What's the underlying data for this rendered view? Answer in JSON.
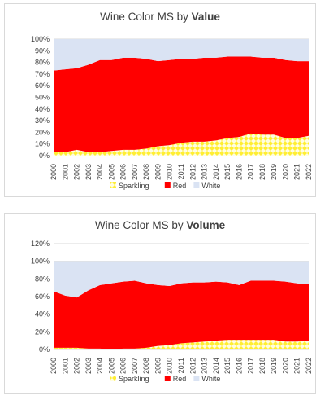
{
  "chart_data": [
    {
      "type": "area",
      "stacked": true,
      "title": "Wine Color MS by Value",
      "title_plain": "Wine Color MS by ",
      "title_bold": "Value",
      "xlabel": "",
      "ylabel": "",
      "x": [
        "2000",
        "2001",
        "2002",
        "2003",
        "2004",
        "2005",
        "2006",
        "2007",
        "2008",
        "2009",
        "2010",
        "2011",
        "2012",
        "2013",
        "2014",
        "2015",
        "2016",
        "2017",
        "2018",
        "2019",
        "2020",
        "2021",
        "2022"
      ],
      "ylim": [
        0,
        100
      ],
      "y_ticks": [
        "0%",
        "10%",
        "20%",
        "30%",
        "40%",
        "50%",
        "60%",
        "70%",
        "80%",
        "90%",
        "100%"
      ],
      "legend_position": "bottom",
      "grid": true,
      "series": [
        {
          "name": "Sparkling",
          "color": "#ffff66",
          "pattern": "diamond",
          "values": [
            3,
            3,
            5,
            3,
            3,
            4,
            5,
            5,
            6,
            8,
            9,
            11,
            12,
            12,
            13,
            15,
            16,
            19,
            18,
            18,
            15,
            15,
            17
          ]
        },
        {
          "name": "Red",
          "color": "#ff0000",
          "values": [
            70,
            71,
            70,
            75,
            79,
            78,
            79,
            79,
            77,
            73,
            73,
            72,
            71,
            72,
            71,
            70,
            69,
            66,
            66,
            66,
            67,
            66,
            64
          ]
        },
        {
          "name": "White",
          "color": "#dae3f3",
          "values": [
            27,
            26,
            25,
            22,
            18,
            18,
            16,
            16,
            17,
            19,
            18,
            17,
            17,
            16,
            16,
            15,
            15,
            15,
            16,
            16,
            18,
            19,
            19
          ]
        }
      ]
    },
    {
      "type": "area",
      "stacked": true,
      "title": "Wine Color MS by Volume",
      "title_plain": "Wine Color MS by ",
      "title_bold": "Volume",
      "xlabel": "",
      "ylabel": "",
      "x": [
        "2000",
        "2001",
        "2002",
        "2003",
        "2004",
        "2005",
        "2006",
        "2007",
        "2008",
        "2009",
        "2010",
        "2011",
        "2012",
        "2013",
        "2014",
        "2015",
        "2016",
        "2017",
        "2018",
        "2019",
        "2020",
        "2021",
        "2022"
      ],
      "ylim": [
        0,
        120
      ],
      "y_ticks": [
        "0%",
        "20%",
        "40%",
        "60%",
        "80%",
        "100%",
        "120%"
      ],
      "legend_position": "bottom",
      "grid": true,
      "series": [
        {
          "name": "Sparkling",
          "color": "#ffff66",
          "pattern": "diamond",
          "values": [
            2,
            2,
            2,
            1,
            1,
            0,
            1,
            1,
            2,
            4,
            5,
            7,
            8,
            9,
            10,
            11,
            11,
            11,
            11,
            11,
            9,
            9,
            10
          ]
        },
        {
          "name": "Red",
          "color": "#ff0000",
          "values": [
            64,
            59,
            57,
            66,
            72,
            75,
            76,
            77,
            73,
            69,
            67,
            68,
            68,
            67,
            67,
            65,
            62,
            67,
            67,
            67,
            68,
            66,
            64
          ]
        },
        {
          "name": "White",
          "color": "#dae3f3",
          "values": [
            34,
            39,
            41,
            33,
            27,
            25,
            23,
            22,
            25,
            27,
            28,
            25,
            24,
            24,
            23,
            24,
            27,
            22,
            22,
            22,
            23,
            25,
            26
          ]
        }
      ]
    }
  ]
}
